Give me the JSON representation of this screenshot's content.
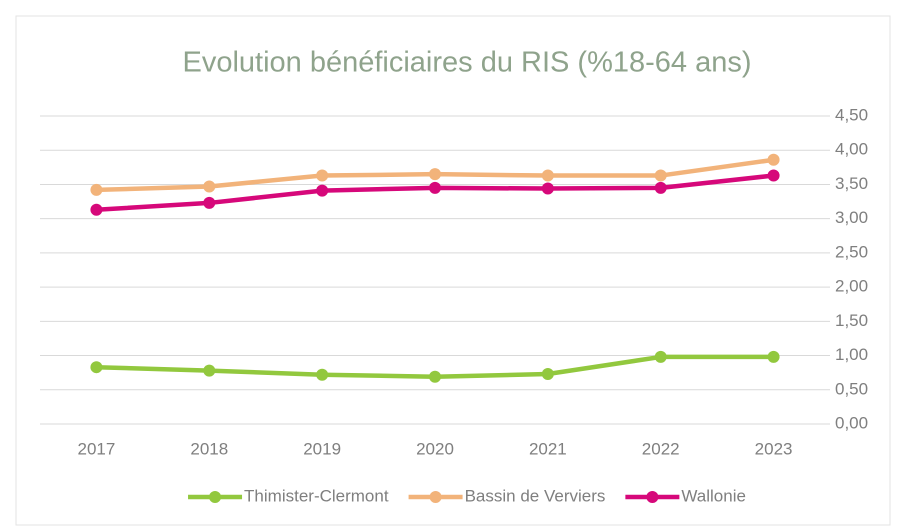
{
  "chart_data": {
    "type": "line",
    "title": "Evolution bénéficiaires du RIS (%18-64 ans)",
    "categories": [
      "2017",
      "2018",
      "2019",
      "2020",
      "2021",
      "2022",
      "2023"
    ],
    "series": [
      {
        "name": "Thimister-Clermont",
        "color": "#92c83e",
        "values": [
          0.83,
          0.78,
          0.72,
          0.69,
          0.73,
          0.98,
          0.98
        ]
      },
      {
        "name": "Bassin de Verviers",
        "color": "#f2b37a",
        "values": [
          3.42,
          3.47,
          3.63,
          3.65,
          3.63,
          3.63,
          3.86
        ]
      },
      {
        "name": "Wallonie",
        "color": "#d6087a",
        "values": [
          3.13,
          3.23,
          3.41,
          3.45,
          3.44,
          3.45,
          3.63
        ]
      }
    ],
    "ylim": [
      0,
      4.5
    ],
    "yticks": [
      {
        "value": 0,
        "label": "0,00"
      },
      {
        "value": 0.5,
        "label": "0,50"
      },
      {
        "value": 1,
        "label": "1,00"
      },
      {
        "value": 1.5,
        "label": "1,50"
      },
      {
        "value": 2,
        "label": "2,00"
      },
      {
        "value": 2.5,
        "label": "2,50"
      },
      {
        "value": 3,
        "label": "3,00"
      },
      {
        "value": 3.5,
        "label": "3,50"
      },
      {
        "value": 4,
        "label": "4,00"
      },
      {
        "value": 4.5,
        "label": "4,50"
      }
    ],
    "grid": true,
    "legend": "bottom"
  }
}
